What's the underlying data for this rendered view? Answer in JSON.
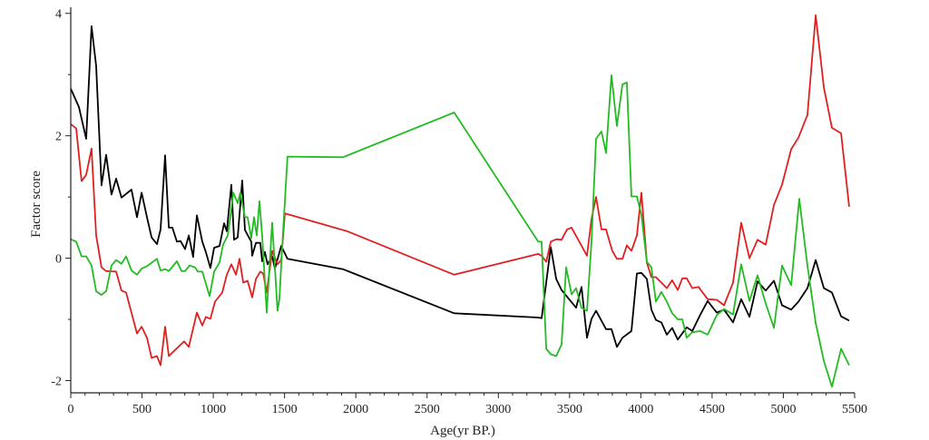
{
  "chart_data": {
    "type": "line",
    "xlabel": "Age(yr BP.)",
    "ylabel": "Factor score",
    "xlim": [
      0,
      5500
    ],
    "ylim": [
      -2.2,
      4.1
    ],
    "x_ticks": [
      0,
      500,
      1000,
      1500,
      2000,
      2500,
      3000,
      3500,
      4000,
      4500,
      5000,
      5500
    ],
    "y_ticks": [
      -2,
      0,
      2,
      4
    ],
    "grid": false,
    "legend": "none",
    "series": [
      {
        "color": "#000000",
        "x": [
          0,
          57,
          70,
          108,
          146,
          178,
          216,
          248,
          286,
          318,
          356,
          426,
          465,
          497,
          535,
          567,
          605,
          630,
          662,
          688,
          713,
          745,
          770,
          802,
          828,
          859,
          885,
          923,
          948,
          980,
          1006,
          1044,
          1076,
          1095,
          1127,
          1146,
          1171,
          1203,
          1222,
          1267,
          1273,
          1299,
          1330,
          1343,
          1362,
          1381,
          1413,
          1432,
          1477,
          1521,
          1910,
          2690,
          3280,
          3304,
          3368,
          3406,
          3444,
          3546,
          3584,
          3622,
          3654,
          3686,
          3756,
          3794,
          3832,
          3871,
          3934,
          3972,
          4004,
          4042,
          4074,
          4106,
          4144,
          4182,
          4220,
          4259,
          4322,
          4361,
          4418,
          4469,
          4533,
          4584,
          4647,
          4704,
          4762,
          4819,
          4876,
          4934,
          4991,
          5055,
          5106,
          5169,
          5227,
          5284,
          5341,
          5405,
          5462
        ],
        "y": [
          2.77,
          2.47,
          2.34,
          1.95,
          3.79,
          3.14,
          1.19,
          1.69,
          1.04,
          1.3,
          0.99,
          1.12,
          0.67,
          1.07,
          0.67,
          0.34,
          0.23,
          0.47,
          1.68,
          0.5,
          0.5,
          0.27,
          0.28,
          0.15,
          0.37,
          0.02,
          0.7,
          0.27,
          0.1,
          -0.16,
          0.17,
          0.2,
          0.57,
          0.44,
          1.2,
          0.3,
          0.34,
          1.27,
          0.46,
          0.27,
          0.04,
          0.25,
          0.25,
          -0.05,
          0.1,
          -0.1,
          0.03,
          -0.17,
          0.2,
          -0.01,
          -0.18,
          -0.9,
          -0.97,
          -0.98,
          0.18,
          -0.34,
          -0.52,
          -0.81,
          -0.47,
          -1.3,
          -0.99,
          -0.86,
          -1.16,
          -1.16,
          -1.45,
          -1.3,
          -1.19,
          -0.25,
          -0.24,
          -0.34,
          -0.84,
          -1.01,
          -1.05,
          -1.25,
          -1.14,
          -1.33,
          -1.13,
          -1.19,
          -0.92,
          -0.7,
          -0.89,
          -0.84,
          -1.05,
          -0.67,
          -0.96,
          -0.38,
          -0.53,
          -0.37,
          -0.77,
          -0.84,
          -0.71,
          -0.49,
          -0.03,
          -0.49,
          -0.56,
          -0.95,
          -1.02
        ]
      },
      {
        "color": "#e02020",
        "x": [
          0,
          38,
          76,
          108,
          146,
          178,
          216,
          248,
          318,
          356,
          388,
          465,
          497,
          535,
          567,
          605,
          630,
          662,
          688,
          732,
          796,
          828,
          885,
          923,
          948,
          980,
          1012,
          1063,
          1095,
          1127,
          1159,
          1184,
          1210,
          1241,
          1273,
          1299,
          1330,
          1350,
          1375,
          1413,
          1451,
          1477,
          1502,
          1940,
          2690,
          3280,
          3304,
          3336,
          3368,
          3406,
          3444,
          3482,
          3514,
          3622,
          3654,
          3686,
          3724,
          3756,
          3800,
          3832,
          3871,
          3902,
          3934,
          3972,
          4004,
          4042,
          4074,
          4106,
          4182,
          4220,
          4259,
          4291,
          4322,
          4361,
          4405,
          4469,
          4533,
          4584,
          4647,
          4704,
          4762,
          4819,
          4876,
          4934,
          4991,
          5055,
          5106,
          5169,
          5227,
          5284,
          5341,
          5405,
          5462
        ],
        "y": [
          2.19,
          2.12,
          1.26,
          1.36,
          1.79,
          0.37,
          -0.15,
          -0.21,
          -0.22,
          -0.53,
          -0.56,
          -1.23,
          -1.12,
          -1.3,
          -1.63,
          -1.6,
          -1.75,
          -1.12,
          -1.6,
          -1.5,
          -1.36,
          -1.45,
          -0.89,
          -1.1,
          -0.96,
          -0.99,
          -0.71,
          -0.56,
          -0.27,
          -0.1,
          -0.27,
          -0.01,
          -0.4,
          -0.37,
          -0.64,
          -0.34,
          -0.22,
          -0.25,
          -0.56,
          0.12,
          -0.1,
          -0.03,
          0.73,
          0.44,
          -0.27,
          0.07,
          0.04,
          -0.06,
          0.27,
          0.31,
          0.3,
          0.47,
          0.5,
          0.04,
          0.64,
          1.0,
          0.47,
          0.47,
          0.12,
          -0.01,
          -0.01,
          0.21,
          0.12,
          0.37,
          1.07,
          -0.07,
          -0.31,
          -0.31,
          -0.49,
          -0.36,
          -0.52,
          -0.33,
          -0.33,
          -0.49,
          -0.47,
          -0.67,
          -0.68,
          -0.77,
          -0.4,
          0.58,
          0.0,
          0.3,
          0.22,
          0.87,
          1.2,
          1.78,
          1.97,
          2.34,
          3.97,
          2.79,
          2.13,
          2.04,
          0.84
        ]
      },
      {
        "color": "#22bb22",
        "x": [
          0,
          38,
          76,
          108,
          146,
          178,
          216,
          248,
          286,
          318,
          356,
          388,
          426,
          465,
          497,
          535,
          605,
          630,
          662,
          688,
          745,
          777,
          802,
          834,
          872,
          891,
          923,
          974,
          1006,
          1044,
          1069,
          1101,
          1120,
          1140,
          1171,
          1190,
          1222,
          1241,
          1267,
          1286,
          1305,
          1324,
          1343,
          1375,
          1413,
          1451,
          1464,
          1483,
          1521,
          1910,
          2690,
          3280,
          3304,
          3336,
          3368,
          3406,
          3444,
          3476,
          3514,
          3546,
          3584,
          3622,
          3654,
          3686,
          3724,
          3756,
          3794,
          3832,
          3871,
          3902,
          3934,
          3972,
          4004,
          4042,
          4074,
          4106,
          4144,
          4182,
          4220,
          4259,
          4291,
          4322,
          4361,
          4418,
          4469,
          4533,
          4584,
          4647,
          4704,
          4762,
          4819,
          4876,
          4934,
          4991,
          5055,
          5112,
          5169,
          5227,
          5284,
          5341,
          5405,
          5462
        ],
        "y": [
          0.31,
          0.27,
          0.03,
          0.03,
          -0.12,
          -0.54,
          -0.6,
          -0.54,
          -0.12,
          -0.03,
          -0.09,
          0.03,
          -0.2,
          -0.27,
          -0.17,
          -0.13,
          -0.01,
          -0.2,
          -0.18,
          -0.21,
          -0.05,
          -0.21,
          -0.21,
          -0.12,
          -0.15,
          -0.22,
          -0.22,
          -0.62,
          -0.22,
          -0.07,
          0.22,
          0.37,
          0.67,
          1.07,
          0.9,
          1.07,
          0.67,
          0.67,
          0.33,
          0.67,
          0.37,
          0.93,
          0.36,
          -0.89,
          0.58,
          -0.86,
          -0.67,
          0.17,
          1.66,
          1.65,
          2.38,
          0.27,
          0.27,
          -1.48,
          -1.57,
          -1.6,
          -1.41,
          -0.15,
          -0.59,
          -0.49,
          -0.81,
          -0.86,
          0.27,
          1.95,
          2.07,
          1.72,
          2.99,
          2.16,
          2.84,
          2.87,
          1.01,
          1.01,
          0.71,
          -0.06,
          -0.15,
          -0.71,
          -0.55,
          -0.71,
          -0.9,
          -1.0,
          -1.0,
          -1.3,
          -1.21,
          -1.19,
          -1.25,
          -0.93,
          -0.83,
          -0.92,
          -0.1,
          -0.7,
          -0.28,
          -0.74,
          -1.14,
          -0.12,
          -0.44,
          0.97,
          -0.12,
          -1.06,
          -1.68,
          -2.1,
          -1.48,
          -1.75
        ]
      }
    ]
  }
}
